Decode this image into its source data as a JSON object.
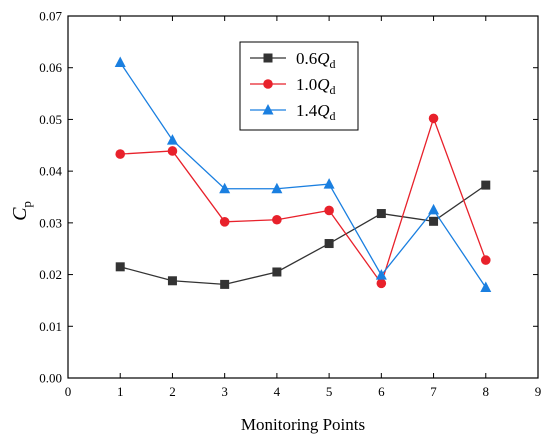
{
  "chart_data": {
    "type": "line",
    "xlabel": "Monitoring Points",
    "ylabel": {
      "main": "C",
      "sub": "p"
    },
    "xlim": [
      0,
      9
    ],
    "ylim": [
      0,
      0.07
    ],
    "x_ticks": [
      "0",
      "1",
      "2",
      "3",
      "4",
      "5",
      "6",
      "7",
      "8",
      "9"
    ],
    "y_ticks": [
      "0.00",
      "0.01",
      "0.02",
      "0.03",
      "0.04",
      "0.05",
      "0.06",
      "0.07"
    ],
    "grid": false,
    "legend_position": "top-center",
    "x": [
      1,
      2,
      3,
      4,
      5,
      6,
      7,
      8
    ],
    "series": [
      {
        "name": "0.6Q_d",
        "label_coef": "0.6",
        "label_var": "Q",
        "label_sub": "d",
        "color": "#333333",
        "marker": "square",
        "values": [
          0.0215,
          0.0188,
          0.0181,
          0.0205,
          0.026,
          0.0318,
          0.0303,
          0.0373
        ]
      },
      {
        "name": "1.0Q_d",
        "label_coef": "1.0",
        "label_var": "Q",
        "label_sub": "d",
        "color": "#e8212b",
        "marker": "circle",
        "values": [
          0.0433,
          0.0439,
          0.0302,
          0.0306,
          0.0324,
          0.0183,
          0.0502,
          0.0228
        ]
      },
      {
        "name": "1.4Q_d",
        "label_coef": "1.4",
        "label_var": "Q",
        "label_sub": "d",
        "color": "#1a7fe0",
        "marker": "triangle",
        "values": [
          0.061,
          0.046,
          0.0366,
          0.0366,
          0.0375,
          0.0199,
          0.0325,
          0.0175
        ]
      }
    ]
  }
}
